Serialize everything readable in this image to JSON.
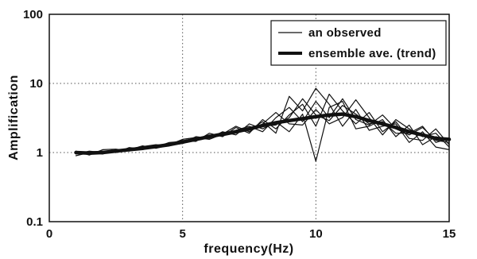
{
  "chart_data": {
    "type": "line",
    "title": "",
    "xlabel": "frequency(Hz)",
    "ylabel": "Amplification",
    "xlim": [
      0,
      15
    ],
    "ylim": [
      0.1,
      100
    ],
    "yscale": "log",
    "x_ticks": [
      0,
      5,
      10,
      15
    ],
    "x_tick_labels": [
      "0",
      "5",
      "10",
      "15"
    ],
    "y_ticks": [
      0.1,
      1,
      10,
      100
    ],
    "y_tick_labels": [
      "0.1",
      "1",
      "10",
      "100"
    ],
    "grid": "dotted",
    "legend_position": "top-right",
    "colors": {
      "lines": "#111111",
      "grid": "#555555",
      "background": "#ffffff"
    },
    "x": [
      1,
      1.5,
      2,
      2.5,
      3,
      3.5,
      4,
      4.5,
      5,
      5.5,
      6,
      6.5,
      7,
      7.5,
      8,
      8.5,
      9,
      9.5,
      10,
      10.5,
      11,
      11.5,
      12,
      12.5,
      13,
      13.5,
      14,
      14.5,
      15
    ],
    "series": [
      {
        "name": "ensemble ave. (trend)",
        "style": "thick",
        "values": [
          1.0,
          0.98,
          1.0,
          1.05,
          1.1,
          1.15,
          1.22,
          1.3,
          1.42,
          1.55,
          1.7,
          1.85,
          2.0,
          2.2,
          2.45,
          2.7,
          2.9,
          3.1,
          3.3,
          3.5,
          3.6,
          3.3,
          2.9,
          2.6,
          2.3,
          2.0,
          1.8,
          1.6,
          1.55
        ]
      },
      {
        "name": "an observed",
        "style": "thin",
        "values": [
          1.0,
          0.95,
          0.98,
          1.08,
          1.12,
          1.1,
          1.25,
          1.32,
          1.4,
          1.6,
          1.75,
          1.8,
          2.1,
          2.4,
          2.0,
          3.2,
          4.5,
          2.8,
          5.5,
          3.2,
          6.0,
          3.0,
          2.5,
          3.5,
          2.2,
          1.8,
          2.3,
          1.5,
          1.4
        ]
      },
      {
        "name": "",
        "style": "thin",
        "values": [
          0.98,
          1.02,
          1.05,
          1.0,
          1.15,
          1.2,
          1.18,
          1.35,
          1.5,
          1.45,
          1.9,
          1.7,
          2.3,
          1.9,
          3.0,
          2.2,
          3.5,
          5.0,
          2.4,
          7.0,
          4.0,
          2.6,
          3.8,
          2.0,
          2.8,
          1.6,
          1.5,
          2.2,
          1.3
        ]
      },
      {
        "name": "",
        "style": "thin",
        "values": [
          1.05,
          0.92,
          1.1,
          1.12,
          1.05,
          1.22,
          1.3,
          1.25,
          1.38,
          1.7,
          1.6,
          2.0,
          1.8,
          2.6,
          2.2,
          2.8,
          2.0,
          3.6,
          0.75,
          4.5,
          5.5,
          2.2,
          2.4,
          3.0,
          1.7,
          2.5,
          1.3,
          1.7,
          1.5
        ]
      },
      {
        "name": "",
        "style": "thin",
        "values": [
          0.9,
          1.0,
          0.95,
          1.1,
          1.08,
          1.18,
          1.2,
          1.4,
          1.45,
          1.5,
          1.65,
          1.95,
          2.0,
          2.1,
          2.8,
          1.9,
          6.5,
          4.0,
          8.5,
          5.0,
          2.4,
          4.2,
          2.1,
          2.4,
          2.6,
          1.4,
          2.0,
          1.2,
          1.1
        ]
      },
      {
        "name": "",
        "style": "thin",
        "values": [
          1.02,
          0.97,
          1.03,
          1.0,
          1.18,
          1.12,
          1.28,
          1.3,
          1.55,
          1.65,
          1.55,
          1.85,
          2.4,
          2.0,
          2.6,
          3.8,
          2.6,
          2.5,
          4.2,
          2.6,
          3.2,
          5.8,
          3.2,
          1.8,
          3.0,
          2.2,
          1.7,
          1.9,
          1.2
        ]
      },
      {
        "name": "",
        "style": "thin",
        "values": [
          0.95,
          1.05,
          1.0,
          1.02,
          1.1,
          1.25,
          1.15,
          1.28,
          1.35,
          1.58,
          1.8,
          1.75,
          1.9,
          2.3,
          2.4,
          2.5,
          3.2,
          6.0,
          3.5,
          2.9,
          4.8,
          3.6,
          2.6,
          2.8,
          1.9,
          1.9,
          2.4,
          1.4,
          1.6
        ]
      }
    ]
  },
  "legend": [
    {
      "label": "an observed",
      "style": "thin"
    },
    {
      "label": "ensemble ave. (trend)",
      "style": "thick"
    }
  ]
}
